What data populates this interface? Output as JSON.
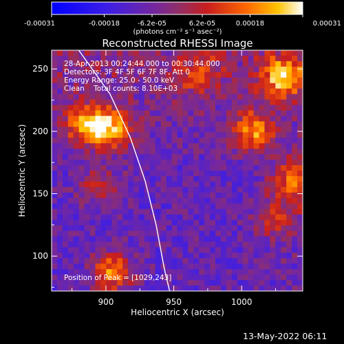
{
  "colorbar": {
    "ticks": [
      {
        "value": -0.00031,
        "label": "-0.00031"
      },
      {
        "value": -0.00018,
        "label": "-0.00018"
      },
      {
        "value": -6.2e-05,
        "label": "-6.2e-05"
      },
      {
        "value": 6.2e-05,
        "label": "6.2e-05"
      },
      {
        "value": 0.00018,
        "label": "0.00018"
      },
      {
        "value": 0.00031,
        "label": "0.00031"
      }
    ],
    "units": "(photons cm⁻² s⁻¹ asec⁻²)",
    "range": [
      -0.00031,
      0.00031
    ]
  },
  "chart_data": {
    "type": "heatmap",
    "title": "Reconstructed RHESSI Image",
    "xlabel": "Heliocentric X (arcsec)",
    "ylabel": "Heliocentric Y (arcsec)",
    "xlim": [
      860,
      1045
    ],
    "ylim": [
      72,
      265
    ],
    "xticks": [
      900,
      950,
      1000
    ],
    "yticks": [
      100,
      150,
      200,
      250
    ],
    "grid": false,
    "limb": {
      "label": "solar limb",
      "points": [
        [
          880,
          265
        ],
        [
          903,
          230
        ],
        [
          918,
          195
        ],
        [
          929,
          160
        ],
        [
          937,
          125
        ],
        [
          943,
          90
        ],
        [
          947,
          72
        ]
      ]
    },
    "peak": {
      "x": 1029,
      "y": 243
    },
    "bright_sources": [
      {
        "x": 1030,
        "y": 243,
        "v": 0.00031
      },
      {
        "x": 903,
        "y": 202,
        "v": 0.00031
      },
      {
        "x": 884,
        "y": 206,
        "v": 0.00026
      },
      {
        "x": 1008,
        "y": 200,
        "v": 0.00026
      },
      {
        "x": 1038,
        "y": 160,
        "v": 0.00024
      },
      {
        "x": 905,
        "y": 87,
        "v": 0.00027
      },
      {
        "x": 970,
        "y": 245,
        "v": 0.00016
      },
      {
        "x": 895,
        "y": 157,
        "v": 0.00014
      },
      {
        "x": 1025,
        "y": 130,
        "v": 0.00016
      }
    ]
  },
  "annotations": {
    "time_range": "28-Apr-2013 00:24:44.000 to 00:30:44.000",
    "detectors": "Detectors: 3F 4F 5F 6F 7F 8F, Att 0",
    "energy": "Energy Range: 25.0 - 50.0 keV",
    "clean": "Clean    Total counts: 8.10E+03",
    "peak_label": "Position of Peak = [1029,243]"
  },
  "footer_timestamp": "13-May-2022 06:11"
}
